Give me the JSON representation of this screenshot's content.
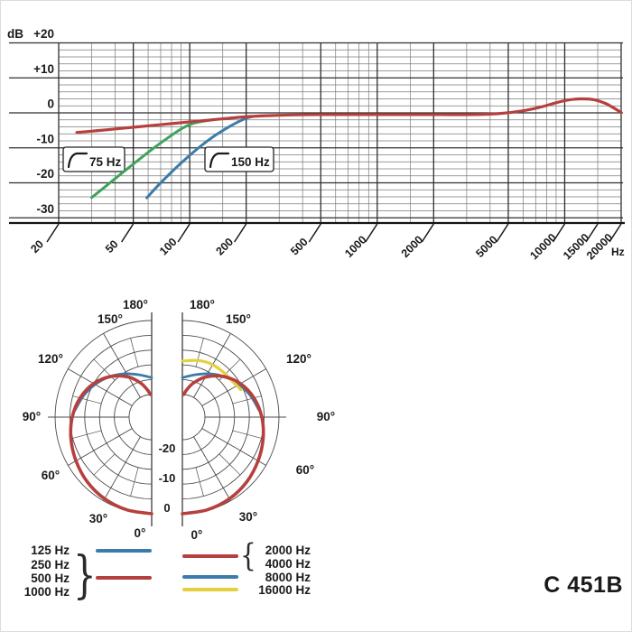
{
  "model": "C 451B",
  "colors": {
    "red": "#b5403e",
    "green": "#3fa35c",
    "blue": "#3b7cab",
    "yellow": "#e6cf3f",
    "grid_major": "#2f2f2f",
    "grid_minor": "#7a7a7a",
    "polar_grid": "#4a4a4a",
    "text": "#1a1a1a"
  },
  "chart_data": [
    {
      "type": "line",
      "title": "Frequency response",
      "x_scale": "log",
      "xlabel": "Hz",
      "ylabel": "dB",
      "xlim": [
        20,
        20000
      ],
      "ylim": [
        -30,
        20
      ],
      "x_unit": "Hz",
      "y_unit": "dB",
      "x_tick_values": [
        20,
        50,
        100,
        200,
        500,
        1000,
        2000,
        5000,
        10000,
        15000,
        20000
      ],
      "x_tick_labels": [
        "20",
        "50",
        "100",
        "200",
        "500",
        "1000",
        "2000",
        "5000",
        "10000",
        "15000",
        "20000"
      ],
      "y_tick_values": [
        20,
        10,
        0,
        -10,
        -20,
        -30
      ],
      "y_tick_labels": [
        "+20",
        "+10",
        "0",
        "-10",
        "-20",
        "-30"
      ],
      "major_vertical_freqs": [
        20,
        50,
        100,
        200,
        500,
        1000,
        2000,
        5000,
        10000,
        20000
      ],
      "minor_vertical_freqs": [
        30,
        40,
        60,
        70,
        80,
        90,
        150,
        300,
        400,
        600,
        700,
        800,
        900,
        1500,
        3000,
        4000,
        6000,
        7000,
        8000,
        9000,
        15000
      ],
      "filter_labels": [
        "75 Hz",
        "150 Hz"
      ],
      "series": [
        {
          "name": "bass-cut-75hz",
          "color": "#3fa35c",
          "points": [
            [
              30,
              -24.2
            ],
            [
              36,
              -20.8
            ],
            [
              44,
              -17
            ],
            [
              54,
              -13.2
            ],
            [
              66,
              -9.6
            ],
            [
              80,
              -6.4
            ],
            [
              92,
              -4.3
            ],
            [
              103,
              -3.1
            ],
            [
              118,
              -2.4
            ],
            [
              135,
              -1.9
            ]
          ]
        },
        {
          "name": "bass-cut-150hz",
          "color": "#3b7cab",
          "points": [
            [
              59,
              -24.3
            ],
            [
              68,
              -20.7
            ],
            [
              80,
              -16.9
            ],
            [
              95,
              -13.2
            ],
            [
              112,
              -9.9
            ],
            [
              132,
              -7
            ],
            [
              155,
              -4.6
            ],
            [
              178,
              -2.8
            ],
            [
              198,
              -1.6
            ],
            [
              215,
              -1.1
            ]
          ]
        },
        {
          "name": "frequency-response",
          "color": "#b5403e",
          "points": [
            [
              25,
              -5.6
            ],
            [
              32,
              -5.1
            ],
            [
              42,
              -4.5
            ],
            [
              55,
              -3.9
            ],
            [
              72,
              -3.3
            ],
            [
              95,
              -2.7
            ],
            [
              120,
              -2.2
            ],
            [
              150,
              -1.7
            ],
            [
              200,
              -1.1
            ],
            [
              260,
              -0.8
            ],
            [
              350,
              -0.6
            ],
            [
              500,
              -0.5
            ],
            [
              700,
              -0.5
            ],
            [
              1000,
              -0.5
            ],
            [
              1500,
              -0.5
            ],
            [
              2200,
              -0.5
            ],
            [
              3200,
              -0.5
            ],
            [
              4500,
              -0.2
            ],
            [
              6000,
              0.6
            ],
            [
              7500,
              1.7
            ],
            [
              9000,
              2.9
            ],
            [
              10500,
              3.7
            ],
            [
              12500,
              4
            ],
            [
              14500,
              3.7
            ],
            [
              16500,
              2.7
            ],
            [
              18000,
              1.6
            ],
            [
              19200,
              0.7
            ],
            [
              20000,
              0.1
            ]
          ]
        }
      ]
    },
    {
      "type": "polar",
      "title": "Polar pattern",
      "unit": "dB",
      "db_rings": [
        0,
        -5,
        -10,
        -15,
        -20,
        -25
      ],
      "db_axis_labels": [
        "-20",
        "-10",
        "0"
      ],
      "angle_labels": [
        "180°",
        "150°",
        "120°",
        "90°",
        "60°",
        "30°",
        "0°"
      ],
      "halves": [
        {
          "side": "left",
          "series": [
            {
              "name": "125 Hz",
              "color": "#3b7cab",
              "points_deg_db": [
                [
                  95,
                  -6.6
                ],
                [
                  108,
                  -8.6
                ],
                [
                  122,
                  -10.9
                ],
                [
                  136,
                  -13.3
                ],
                [
                  150,
                  -15.7
                ],
                [
                  165,
                  -17.9
                ],
                [
                  180,
                  -19.3
                ]
              ]
            },
            {
              "name": "250-1000 Hz",
              "color": "#b5403e",
              "points_deg_db": [
                [
                  0,
                  0
                ],
                [
                  15,
                  -0.2
                ],
                [
                  30,
                  -0.8
                ],
                [
                  45,
                  -1.8
                ],
                [
                  60,
                  -3.1
                ],
                [
                  75,
                  -4.4
                ],
                [
                  90,
                  -5.8
                ],
                [
                  105,
                  -7.6
                ],
                [
                  120,
                  -10
                ],
                [
                  135,
                  -13.2
                ],
                [
                  150,
                  -17
                ],
                [
                  162,
                  -20.5
                ],
                [
                  171,
                  -23.3
                ],
                [
                  177,
                  -25
                ]
              ]
            }
          ]
        },
        {
          "side": "right",
          "series": [
            {
              "name": "8000 Hz",
              "color": "#3b7cab",
              "points_deg_db": [
                [
                  95,
                  -6.6
                ],
                [
                  108,
                  -8.6
                ],
                [
                  122,
                  -10.9
                ],
                [
                  136,
                  -13.3
                ],
                [
                  150,
                  -15.7
                ],
                [
                  165,
                  -17.9
                ],
                [
                  180,
                  -19.3
                ]
              ]
            },
            {
              "name": "16000 Hz",
              "color": "#e6cf3f",
              "points_deg_db": [
                [
                  115,
                  -10.8
                ],
                [
                  125,
                  -11.8
                ],
                [
                  138,
                  -12.1
                ],
                [
                  152,
                  -12.2
                ],
                [
                  165,
                  -12.8
                ],
                [
                  180,
                  -13.7
                ]
              ]
            },
            {
              "name": "2000-4000 Hz",
              "color": "#b5403e",
              "points_deg_db": [
                [
                  0,
                  0
                ],
                [
                  15,
                  -0.2
                ],
                [
                  30,
                  -0.8
                ],
                [
                  45,
                  -1.8
                ],
                [
                  60,
                  -3.1
                ],
                [
                  75,
                  -4.4
                ],
                [
                  90,
                  -5.8
                ],
                [
                  105,
                  -7.6
                ],
                [
                  120,
                  -10
                ],
                [
                  135,
                  -13.2
                ],
                [
                  150,
                  -17
                ],
                [
                  162,
                  -20.5
                ],
                [
                  171,
                  -23.3
                ],
                [
                  177,
                  -25
                ]
              ]
            }
          ]
        }
      ]
    }
  ],
  "legend": {
    "left": {
      "rows": [
        "125 Hz",
        "250 Hz",
        "500 Hz",
        "1000 Hz"
      ],
      "brace": "}",
      "swatches": [
        {
          "color": "#3b7cab"
        },
        {
          "color": "#b5403e"
        }
      ]
    },
    "right": {
      "rows": [
        "2000 Hz",
        "4000 Hz",
        "8000 Hz",
        "16000 Hz"
      ],
      "brace": "{",
      "swatches": [
        {
          "color": "#b5403e"
        },
        {
          "color": "#3b7cab"
        },
        {
          "color": "#e6cf3f"
        }
      ]
    }
  }
}
